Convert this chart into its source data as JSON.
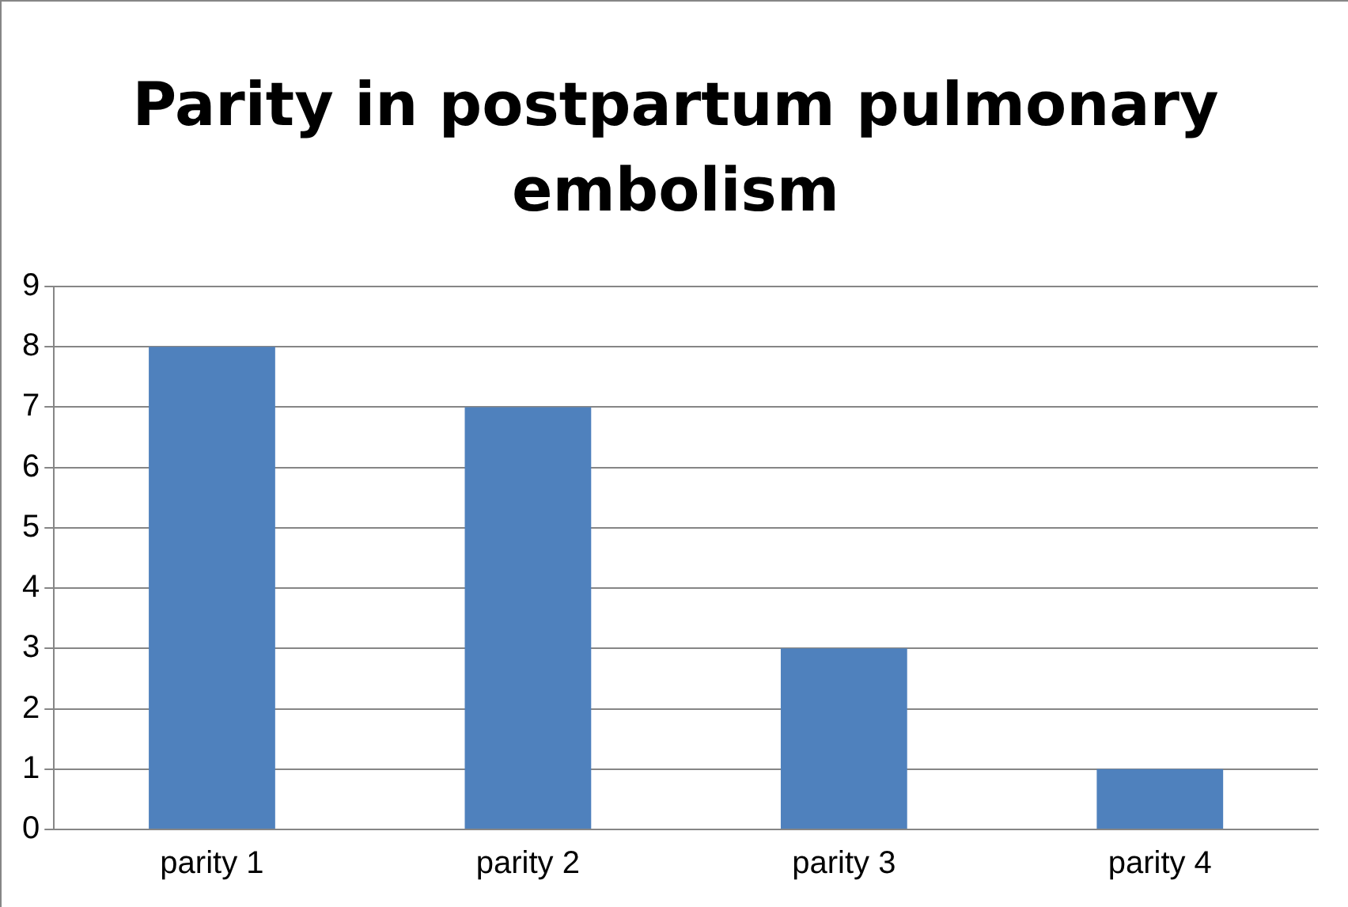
{
  "chart_data": {
    "type": "bar",
    "title": "Parity in postpartum pulmonary embolism",
    "categories": [
      "parity 1",
      "parity 2",
      "parity 3",
      "parity 4"
    ],
    "values": [
      8,
      7,
      3,
      1
    ],
    "color": "#4f81bd",
    "ylim": [
      0,
      9
    ],
    "yticks": [
      0,
      1,
      2,
      3,
      4,
      5,
      6,
      7,
      8,
      9
    ],
    "grid": "y",
    "legend": false
  }
}
